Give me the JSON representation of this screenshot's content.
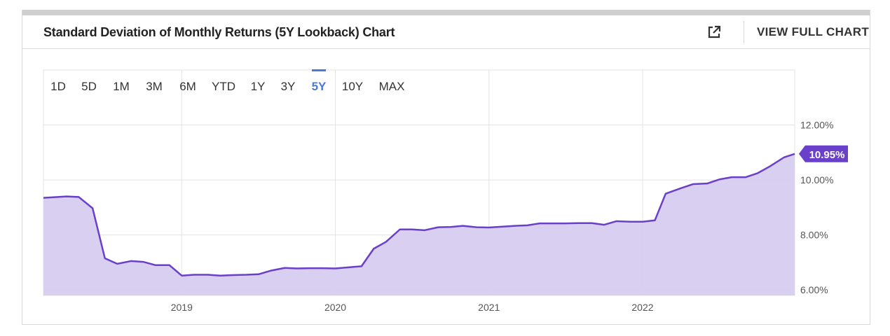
{
  "header": {
    "title": "Standard Deviation of Monthly Returns (5Y Lookback) Chart",
    "full_chart_label": "VIEW FULL CHART"
  },
  "range_tabs": [
    "1D",
    "5D",
    "1M",
    "3M",
    "6M",
    "YTD",
    "1Y",
    "3Y",
    "5Y",
    "10Y",
    "MAX"
  ],
  "active_range": "5Y",
  "colors": {
    "line": "#6a3fc9",
    "area": "#d6ccf0",
    "active_tab": "#4a7ad6",
    "grid": "#e3e3e3"
  },
  "icons": {
    "external": "external-link-icon"
  },
  "chart_data": {
    "type": "area",
    "title": "",
    "xlabel": "",
    "ylabel": "",
    "x_tick_labels": [
      "2019",
      "2020",
      "2021",
      "2022"
    ],
    "y_tick_labels": [
      "6.00%",
      "8.00%",
      "10.00%",
      "12.00%"
    ],
    "ylim": [
      5.8,
      14.0
    ],
    "xlim": [
      2018.1,
      2022.99
    ],
    "last_value_label": "10.95%",
    "grid": true,
    "series": [
      {
        "x": [
          2018.1,
          2018.25,
          2018.33,
          2018.42,
          2018.5,
          2018.58,
          2018.67,
          2018.75,
          2018.83,
          2018.92,
          2019.0,
          2019.08,
          2019.17,
          2019.25,
          2019.33,
          2019.42,
          2019.5,
          2019.58,
          2019.67,
          2019.75,
          2019.83,
          2019.92,
          2020.0,
          2020.08,
          2020.17,
          2020.25,
          2020.33,
          2020.42,
          2020.5,
          2020.58,
          2020.67,
          2020.75,
          2020.83,
          2020.92,
          2021.0,
          2021.08,
          2021.17,
          2021.25,
          2021.33,
          2021.42,
          2021.5,
          2021.58,
          2021.67,
          2021.75,
          2021.83,
          2021.92,
          2022.0,
          2022.08,
          2022.15,
          2022.25,
          2022.33,
          2022.42,
          2022.5,
          2022.58,
          2022.67,
          2022.75,
          2022.83,
          2022.92,
          2022.99
        ],
        "values": [
          9.35,
          9.4,
          9.38,
          8.97,
          7.15,
          6.95,
          7.05,
          7.02,
          6.9,
          6.9,
          6.52,
          6.55,
          6.55,
          6.52,
          6.54,
          6.55,
          6.57,
          6.7,
          6.8,
          6.78,
          6.79,
          6.79,
          6.78,
          6.82,
          6.86,
          7.5,
          7.75,
          8.2,
          8.2,
          8.17,
          8.28,
          8.29,
          8.33,
          8.28,
          8.27,
          8.3,
          8.33,
          8.35,
          8.42,
          8.42,
          8.42,
          8.43,
          8.43,
          8.37,
          8.5,
          8.48,
          8.48,
          8.53,
          9.5,
          9.7,
          9.85,
          9.87,
          10.02,
          10.1,
          10.1,
          10.25,
          10.5,
          10.82,
          10.95
        ]
      }
    ]
  }
}
